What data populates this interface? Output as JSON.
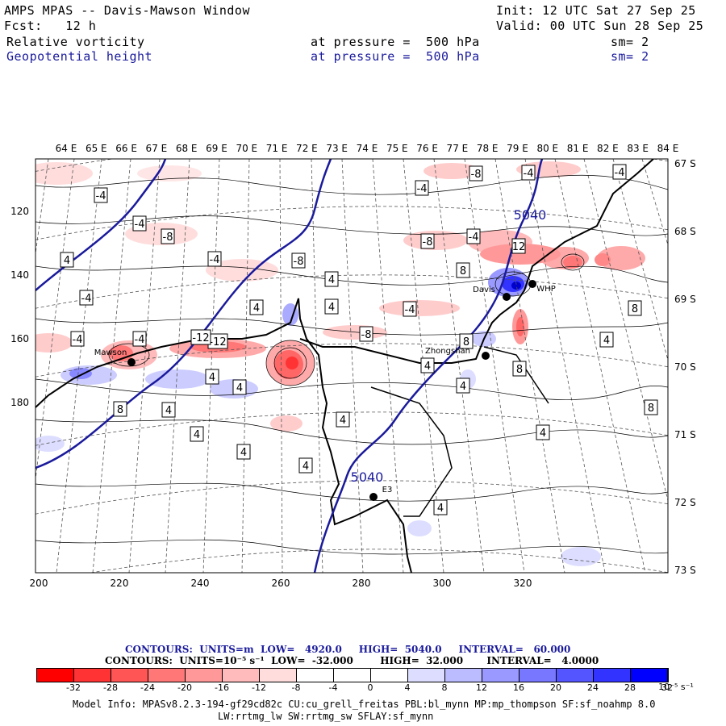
{
  "header": {
    "title": "AMPS MPAS -- Davis-Mawson Window",
    "forecast": "Fcst:   12 h",
    "init": "Init: 12 UTC Sat 27 Sep 25",
    "valid": "Valid: 00 UTC Sun 28 Sep 25",
    "field1_name": "Relative vorticity",
    "field1_level": "at pressure =  500 hPa",
    "field1_sm": "sm= 2",
    "field2_name": "Geopotential height",
    "field2_level": "at pressure =  500 hPa",
    "field2_sm": "sm= 2"
  },
  "map": {
    "top_labels": [
      "64 E",
      "65 E",
      "66 E",
      "67 E",
      "68 E",
      "69 E",
      "70 E",
      "71 E",
      "72 E",
      "73 E",
      "74 E",
      "75 E",
      "76 E",
      "77 E",
      "78 E",
      "79 E",
      "80 E",
      "81 E",
      "82 E",
      "83 E",
      "84 E"
    ],
    "right_labels": [
      "67 S",
      "68 S",
      "69 S",
      "70 S",
      "71 S",
      "72 S",
      "73 S"
    ],
    "left_ticks": [
      "120",
      "140",
      "160",
      "180"
    ],
    "bottom_ticks": [
      "200",
      "220",
      "240",
      "260",
      "280",
      "300",
      "320"
    ],
    "stations": [
      {
        "name": "Mawson"
      },
      {
        "name": "Davis"
      },
      {
        "name": "WHP"
      },
      {
        "name": "Zhongshan"
      },
      {
        "name": "E3"
      }
    ],
    "height_contour_labels": [
      "5040",
      "5040"
    ],
    "vort_labels": [
      "-4",
      "-4",
      "-8",
      "-4",
      "-8",
      "-8",
      "-4",
      "-4",
      "-8",
      "-4",
      "-4",
      "-12",
      "12",
      "-8",
      "-12",
      "4",
      "4",
      "4",
      "4",
      "8",
      "8",
      "4",
      "4",
      "8",
      "8",
      "4",
      "4",
      "8",
      "8",
      "4",
      "4",
      "4",
      "4",
      "4",
      "4",
      "4",
      "4",
      "-4",
      "-4",
      "-4",
      "-4"
    ]
  },
  "contour_info": {
    "line1": "CONTOURS:  UNITS=m  LOW=   4920.0     HIGH=  5040.0     INTERVAL=   60.000",
    "line2": "CONTOURS:  UNITS=10⁻⁵ s⁻¹  LOW=  -32.000        HIGH=  32.000       INTERVAL=   4.0000"
  },
  "colorbar": {
    "labels": [
      "-32",
      "-28",
      "-24",
      "-20",
      "-16",
      "-12",
      "-8",
      "-4",
      "0",
      "4",
      "8",
      "12",
      "16",
      "20",
      "24",
      "28",
      "32"
    ],
    "unit": "10⁻⁵ s⁻¹",
    "colors": [
      "#ff0000",
      "#ff3333",
      "#ff5555",
      "#ff7777",
      "#ff9999",
      "#ffbbbb",
      "#ffdddd",
      "#ffffff",
      "#ffffff",
      "#ffffff",
      "#ddddff",
      "#bbbbff",
      "#9999ff",
      "#7777ff",
      "#5555ff",
      "#3333ff",
      "#0000ff"
    ]
  },
  "footer": {
    "model_info": "Model Info: MPASv8.2.3-194-gf29cd82c CU:cu_grell_freitas PBL:bl_mynn MP:mp_thompson SF:sf_noahmp 8.0",
    "model_info2": "LW:rrtmg_lw SW:rrtmg_sw SFLAY:sf_mynn"
  }
}
